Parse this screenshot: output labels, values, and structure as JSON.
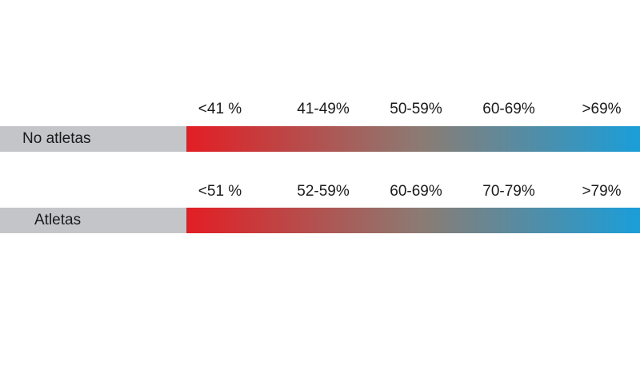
{
  "rows": [
    {
      "label": "No atletas",
      "ranges": [
        "<41 %",
        "41-49%",
        "50-59%",
        "60-69%",
        ">69%"
      ]
    },
    {
      "label": "Atletas",
      "ranges": [
        "<51 %",
        "52-59%",
        "60-69%",
        "70-79%",
        ">79%"
      ]
    }
  ],
  "gradient": {
    "start": "#e31e24",
    "mid": "#8a7c74",
    "end": "#1a9ed9"
  },
  "colors": {
    "label_bg": "#c4c5c9"
  }
}
